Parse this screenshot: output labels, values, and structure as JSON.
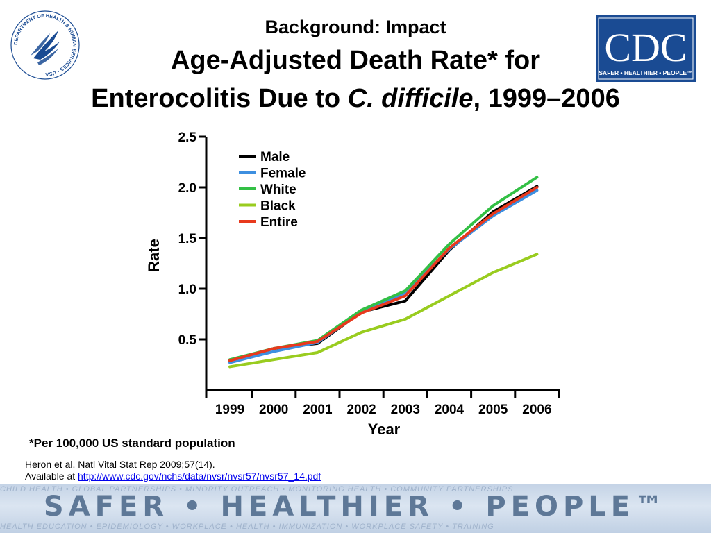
{
  "header": {
    "line1": "Background: Impact",
    "line2": "Age-Adjusted Death Rate* for",
    "line3_pre": "Enterocolitis Due to ",
    "line3_italic": "C. difficile",
    "line3_post": ", 1999–2006"
  },
  "logos": {
    "hhs_seal_text": "DEPARTMENT OF HEALTH & HUMAN SERVICES • USA",
    "cdc_text": "CDC",
    "cdc_tagline": "SAFER • HEALTHIER • PEOPLE™",
    "cdc_color": "#1a4b93"
  },
  "chart_data": {
    "type": "line",
    "x": [
      "1999",
      "2000",
      "2001",
      "2002",
      "2003",
      "2004",
      "2005",
      "2006"
    ],
    "xlabel": "Year",
    "ylabel": "Rate",
    "ylim": [
      0,
      2.5
    ],
    "yticks": [
      0.5,
      1.0,
      1.5,
      2.0,
      2.5
    ],
    "ytick_labels": [
      "0.5",
      "1.0",
      "1.5",
      "2.0",
      "2.5"
    ],
    "grid": false,
    "legend_position": "top-left",
    "series": [
      {
        "name": "Male",
        "color": "#000000",
        "values": [
          0.29,
          0.41,
          0.46,
          0.77,
          0.88,
          1.38,
          1.76,
          2.01
        ]
      },
      {
        "name": "Female",
        "color": "#3d8fe0",
        "values": [
          0.27,
          0.38,
          0.47,
          0.77,
          0.96,
          1.39,
          1.72,
          1.97
        ]
      },
      {
        "name": "White",
        "color": "#33c045",
        "values": [
          0.3,
          0.41,
          0.49,
          0.79,
          0.98,
          1.44,
          1.82,
          2.1
        ]
      },
      {
        "name": "Black",
        "color": "#99cc1f",
        "values": [
          0.23,
          0.3,
          0.37,
          0.57,
          0.7,
          0.93,
          1.16,
          1.34
        ]
      },
      {
        "name": "Entire",
        "color": "#e8391d",
        "values": [
          0.29,
          0.41,
          0.48,
          0.76,
          0.93,
          1.4,
          1.74,
          2.0
        ]
      }
    ]
  },
  "footnote": "*Per 100,000 US standard population",
  "reference": {
    "citation": "Heron et al. Natl Vital Stat Rep 2009;57(14).",
    "available_prefix": "Available at ",
    "link_text": "http://www.cdc.gov/nchs/data/nvsr/nvsr57/nvsr57_14.pdf"
  },
  "banner": {
    "text": "SAFER • HEALTHIER • PEOPLE™",
    "top_line": "CHILD HEALTH • GLOBAL PARTNERSHIPS • MINORITY OUTREACH • MONITORING HEALTH • COMMUNITY PARTNERSHIPS",
    "bottom_line": "HEALTH EDUCATION • EPIDEMIOLOGY • WORKPLACE • HEALTH • IMMUNIZATION • WORKPLACE SAFETY • TRAINING"
  }
}
